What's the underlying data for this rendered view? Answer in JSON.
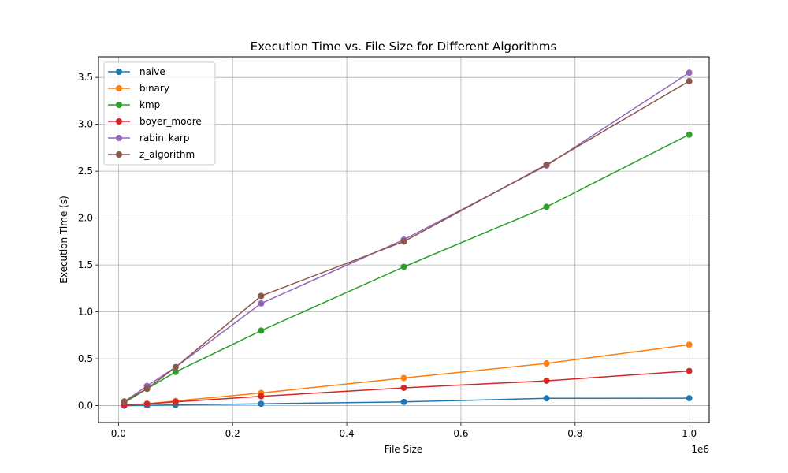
{
  "chart_data": {
    "type": "line",
    "title": "Execution Time vs. File Size for Different Algorithms",
    "xlabel": "File Size",
    "ylabel": "Execution Time (s)",
    "x_offset_label": "1e6",
    "xlim": [
      -0.035,
      1.035
    ],
    "ylim": [
      -0.18,
      3.72
    ],
    "x_ticks": [
      0.0,
      0.2,
      0.4,
      0.6,
      0.8,
      1.0
    ],
    "x_tick_labels": [
      "0.0",
      "0.2",
      "0.4",
      "0.6",
      "0.8",
      "1.0"
    ],
    "y_ticks": [
      0.0,
      0.5,
      1.0,
      1.5,
      2.0,
      2.5,
      3.0,
      3.5
    ],
    "y_tick_labels": [
      "0.0",
      "0.5",
      "1.0",
      "1.5",
      "2.0",
      "2.5",
      "3.0",
      "3.5"
    ],
    "grid": true,
    "legend_position": "top-left",
    "x": [
      0.01,
      0.05,
      0.1,
      0.25,
      0.5,
      0.75,
      1.0
    ],
    "series": [
      {
        "name": "naive",
        "color": "#1f77b4",
        "values": [
          0.0,
          0.003,
          0.008,
          0.02,
          0.04,
          0.078,
          0.08
        ]
      },
      {
        "name": "binary",
        "color": "#ff7f0e",
        "values": [
          0.005,
          0.02,
          0.05,
          0.135,
          0.295,
          0.45,
          0.65
        ]
      },
      {
        "name": "kmp",
        "color": "#2ca02c",
        "values": [
          0.03,
          0.18,
          0.36,
          0.8,
          1.48,
          2.12,
          2.89
        ]
      },
      {
        "name": "boyer_moore",
        "color": "#d62728",
        "values": [
          0.005,
          0.02,
          0.04,
          0.1,
          0.19,
          0.265,
          0.37
        ]
      },
      {
        "name": "rabin_karp",
        "color": "#9467bd",
        "values": [
          0.04,
          0.21,
          0.41,
          1.09,
          1.77,
          2.56,
          3.55
        ]
      },
      {
        "name": "z_algorithm",
        "color": "#8c564b",
        "values": [
          0.045,
          0.18,
          0.41,
          1.17,
          1.75,
          2.57,
          3.46
        ]
      }
    ]
  }
}
